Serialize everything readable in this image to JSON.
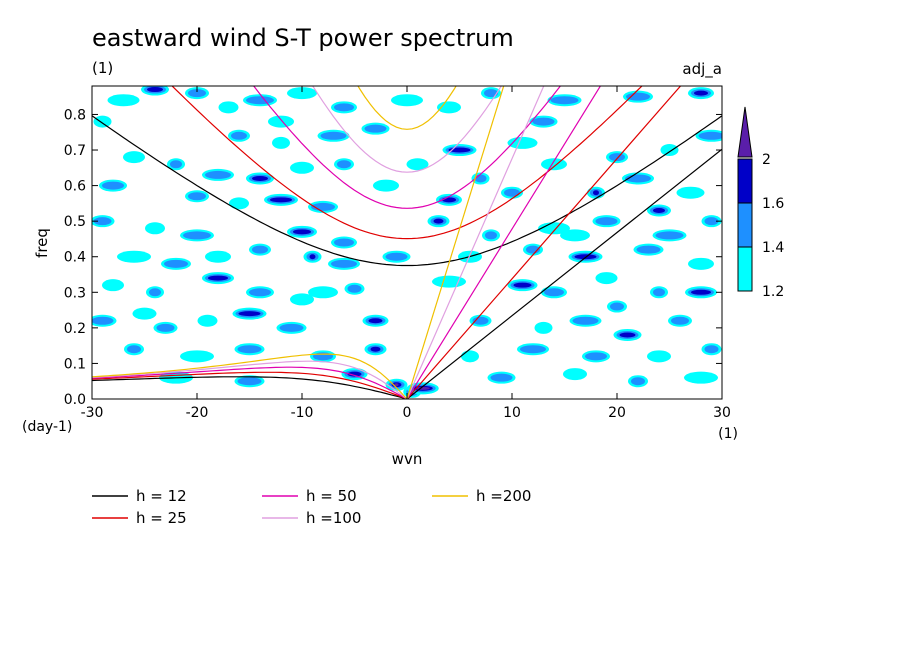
{
  "chart_data": {
    "type": "heatmap",
    "title": "eastward wind S-T power spectrum",
    "subtitle": "(1)",
    "run_label": "adj_a",
    "xlabel": "wvn",
    "ylabel": "freq",
    "x_unit": "(1)",
    "y_unit": "(day-1)",
    "xlim": [
      -30,
      30
    ],
    "ylim": [
      0,
      0.88
    ],
    "x_ticks": [
      "-30",
      "-20",
      "-10",
      "0",
      "10",
      "20",
      "30"
    ],
    "y_ticks": [
      "0.0",
      "0.1",
      "0.2",
      "0.3",
      "0.4",
      "0.5",
      "0.6",
      "0.7",
      "0.8"
    ],
    "colorbar": {
      "levels": [
        "1.2",
        "1.4",
        "1.6",
        "2"
      ],
      "colors": [
        "#00ffff",
        "#1e90ff",
        "#0000c8",
        "#5a1eaa"
      ]
    },
    "curves": [
      {
        "label": "h = 12",
        "h": 12,
        "color": "#000000"
      },
      {
        "label": "h = 25",
        "h": 25,
        "color": "#e00000"
      },
      {
        "label": "h = 50",
        "h": 50,
        "color": "#e000b0"
      },
      {
        "label": "h =100",
        "h": 100,
        "color": "#e0a0e0"
      },
      {
        "label": "h =200",
        "h": 200,
        "color": "#f0c000"
      }
    ],
    "blobs": [
      [
        -29,
        0.78,
        1.3
      ],
      [
        -27,
        0.84,
        1.3
      ],
      [
        -24,
        0.87,
        1.6
      ],
      [
        -20,
        0.86,
        1.4
      ],
      [
        -17,
        0.82,
        1.3
      ],
      [
        -14,
        0.84,
        1.4
      ],
      [
        -10,
        0.86,
        1.3
      ],
      [
        -6,
        0.82,
        1.4
      ],
      [
        -16,
        0.74,
        1.4
      ],
      [
        -12,
        0.72,
        1.3
      ],
      [
        -7,
        0.74,
        1.4
      ],
      [
        -3,
        0.76,
        1.4
      ],
      [
        4,
        0.82,
        1.3
      ],
      [
        8,
        0.86,
        1.4
      ],
      [
        15,
        0.84,
        1.4
      ],
      [
        22,
        0.85,
        1.4
      ],
      [
        28,
        0.86,
        1.6
      ],
      [
        -26,
        0.68,
        1.3
      ],
      [
        -22,
        0.66,
        1.4
      ],
      [
        -18,
        0.63,
        1.4
      ],
      [
        -14,
        0.62,
        1.6
      ],
      [
        -10,
        0.65,
        1.3
      ],
      [
        -6,
        0.66,
        1.4
      ],
      [
        5,
        0.7,
        1.6
      ],
      [
        11,
        0.72,
        1.3
      ],
      [
        14,
        0.66,
        1.3
      ],
      [
        20,
        0.68,
        1.4
      ],
      [
        25,
        0.7,
        1.3
      ],
      [
        29,
        0.74,
        1.4
      ],
      [
        -28,
        0.6,
        1.4
      ],
      [
        -20,
        0.57,
        1.4
      ],
      [
        -16,
        0.55,
        1.3
      ],
      [
        -12,
        0.56,
        1.6
      ],
      [
        -8,
        0.54,
        1.4
      ],
      [
        4,
        0.56,
        1.6
      ],
      [
        10,
        0.58,
        1.4
      ],
      [
        18,
        0.58,
        1.6
      ],
      [
        22,
        0.62,
        1.4
      ],
      [
        27,
        0.58,
        1.3
      ],
      [
        -29,
        0.5,
        1.4
      ],
      [
        -24,
        0.48,
        1.3
      ],
      [
        -20,
        0.46,
        1.4
      ],
      [
        -10,
        0.47,
        1.6
      ],
      [
        -6,
        0.44,
        1.4
      ],
      [
        3,
        0.5,
        1.6
      ],
      [
        8,
        0.46,
        1.4
      ],
      [
        14,
        0.48,
        1.3
      ],
      [
        19,
        0.5,
        1.4
      ],
      [
        24,
        0.53,
        1.6
      ],
      [
        29,
        0.5,
        1.4
      ],
      [
        -26,
        0.4,
        1.3
      ],
      [
        -22,
        0.38,
        1.4
      ],
      [
        -18,
        0.4,
        1.3
      ],
      [
        -14,
        0.42,
        1.4
      ],
      [
        -9,
        0.4,
        1.6
      ],
      [
        -6,
        0.38,
        1.4
      ],
      [
        -1,
        0.4,
        1.4
      ],
      [
        6,
        0.4,
        1.3
      ],
      [
        12,
        0.42,
        1.4
      ],
      [
        17,
        0.4,
        1.6
      ],
      [
        23,
        0.42,
        1.4
      ],
      [
        28,
        0.38,
        1.3
      ],
      [
        -28,
        0.32,
        1.3
      ],
      [
        -24,
        0.3,
        1.4
      ],
      [
        -18,
        0.34,
        1.6
      ],
      [
        -14,
        0.3,
        1.4
      ],
      [
        -10,
        0.28,
        1.3
      ],
      [
        -5,
        0.31,
        1.4
      ],
      [
        4,
        0.33,
        1.3
      ],
      [
        11,
        0.32,
        1.6
      ],
      [
        14,
        0.3,
        1.4
      ],
      [
        19,
        0.34,
        1.3
      ],
      [
        24,
        0.3,
        1.4
      ],
      [
        28,
        0.3,
        1.6
      ],
      [
        -29,
        0.22,
        1.4
      ],
      [
        -23,
        0.2,
        1.4
      ],
      [
        -19,
        0.22,
        1.3
      ],
      [
        -15,
        0.24,
        1.6
      ],
      [
        -11,
        0.2,
        1.4
      ],
      [
        -3,
        0.22,
        1.6
      ],
      [
        7,
        0.22,
        1.4
      ],
      [
        13,
        0.2,
        1.3
      ],
      [
        17,
        0.22,
        1.4
      ],
      [
        21,
        0.18,
        1.6
      ],
      [
        26,
        0.22,
        1.4
      ],
      [
        -26,
        0.14,
        1.4
      ],
      [
        -20,
        0.12,
        1.3
      ],
      [
        -15,
        0.14,
        1.4
      ],
      [
        -8,
        0.12,
        1.4
      ],
      [
        -3,
        0.14,
        1.6
      ],
      [
        6,
        0.12,
        1.3
      ],
      [
        12,
        0.14,
        1.4
      ],
      [
        18,
        0.12,
        1.4
      ],
      [
        24,
        0.12,
        1.3
      ],
      [
        29,
        0.14,
        1.4
      ],
      [
        -22,
        0.06,
        1.3
      ],
      [
        -15,
        0.05,
        1.4
      ],
      [
        -5,
        0.07,
        1.6
      ],
      [
        -1,
        0.04,
        2.0
      ],
      [
        0.5,
        0.02,
        1.6
      ],
      [
        1.5,
        0.03,
        2.0
      ],
      [
        9,
        0.06,
        1.4
      ],
      [
        16,
        0.07,
        1.3
      ],
      [
        22,
        0.05,
        1.4
      ],
      [
        28,
        0.06,
        1.3
      ],
      [
        -8,
        0.3,
        1.3
      ],
      [
        -2,
        0.6,
        1.3
      ],
      [
        1,
        0.66,
        1.3
      ],
      [
        7,
        0.62,
        1.4
      ],
      [
        0,
        0.84,
        1.3
      ],
      [
        13,
        0.78,
        1.4
      ],
      [
        -25,
        0.24,
        1.3
      ],
      [
        20,
        0.26,
        1.4
      ],
      [
        25,
        0.46,
        1.4
      ],
      [
        16,
        0.46,
        1.3
      ],
      [
        -12,
        0.78,
        1.3
      ]
    ]
  },
  "legend_items": [
    {
      "label": "h = 12",
      "color": "#000000"
    },
    {
      "label": "h = 25",
      "color": "#e00000"
    },
    {
      "label": "h = 50",
      "color": "#e000b0"
    },
    {
      "label": "h =100",
      "color": "#e0a0e0"
    },
    {
      "label": "h =200",
      "color": "#f0c000"
    }
  ]
}
